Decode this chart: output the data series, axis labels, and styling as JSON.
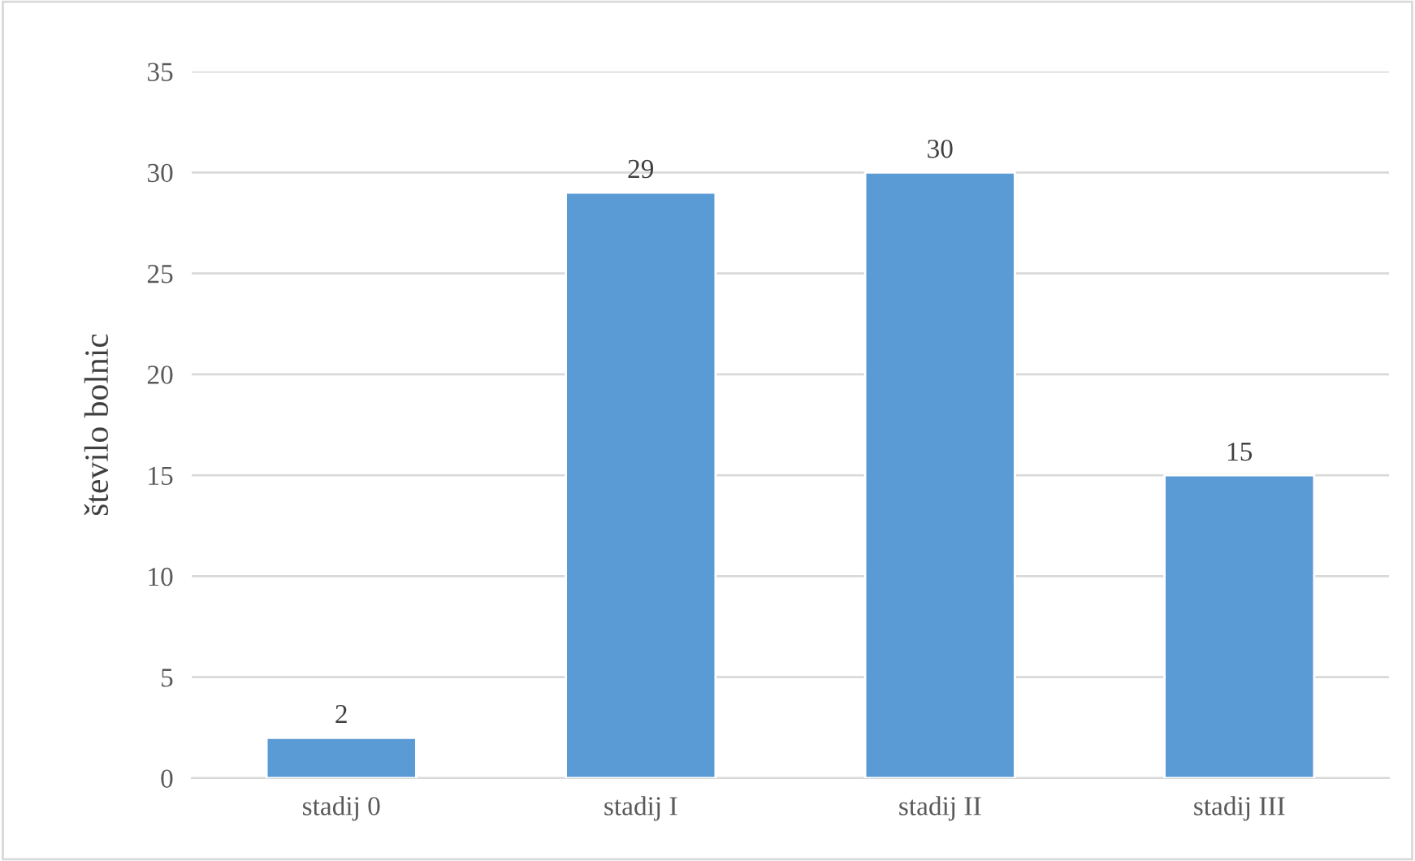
{
  "chart_data": {
    "type": "bar",
    "ylabel": "število bolnic",
    "categories": [
      "stadij 0",
      "stadij I",
      "stadij II",
      "stadij III"
    ],
    "values": [
      2,
      29,
      30,
      15
    ],
    "color": "#5b9bd5",
    "ylim": [
      0,
      35
    ],
    "yticks": [
      0,
      5,
      10,
      15,
      20,
      25,
      30,
      35
    ],
    "grid": "y",
    "data_labels": true
  }
}
